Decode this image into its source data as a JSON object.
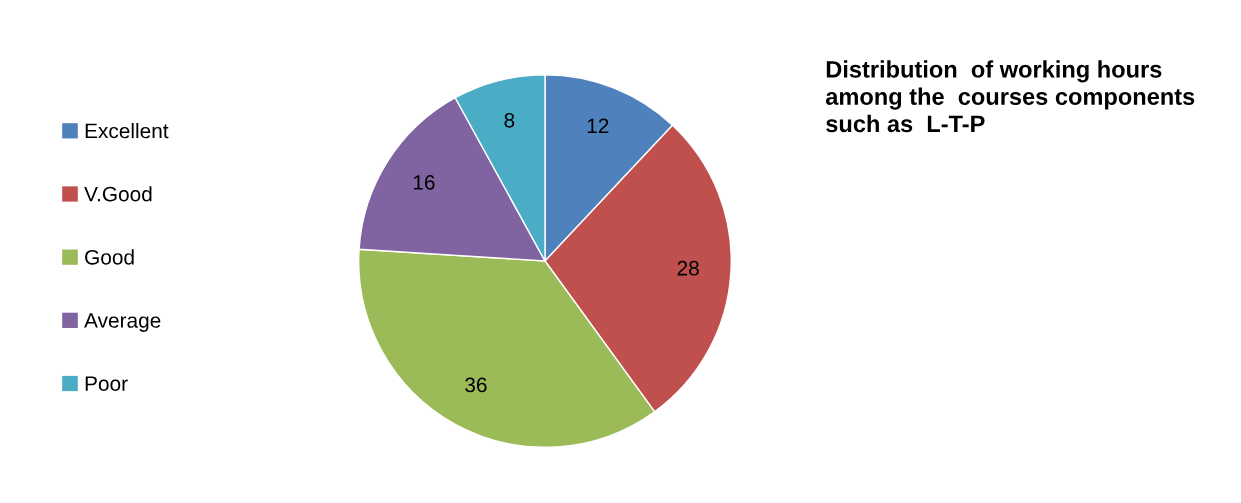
{
  "chart_data": {
    "type": "pie",
    "title": "Distribution  of working hours  among the  courses components  such as  L-T-P",
    "categories": [
      "Excellent",
      "V.Good",
      "Good",
      "Average",
      "Poor"
    ],
    "values": [
      12,
      28,
      36,
      16,
      8
    ],
    "colors": [
      "#4f81bd",
      "#c0504d",
      "#9bbb59",
      "#8064a2",
      "#4bacc6"
    ],
    "data_labels": true,
    "legend": "left"
  }
}
